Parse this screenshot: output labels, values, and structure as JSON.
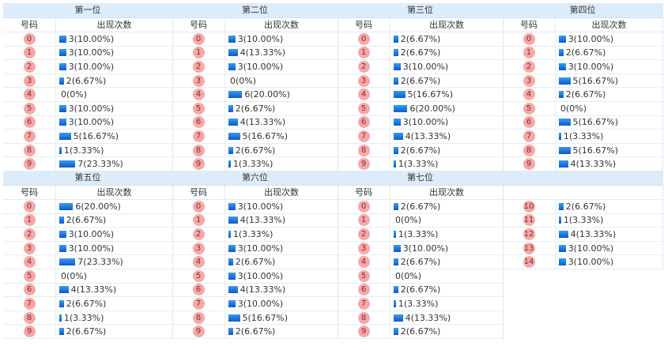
{
  "sub_headers": {
    "code": "号码",
    "count": "出现次数"
  },
  "colors": {
    "header_bg": "#dcecfa",
    "ball": "#f6a8a8",
    "bar": "#0a5cc8"
  },
  "positions": [
    {
      "title": "第一位",
      "rows": [
        {
          "code": "0",
          "count": 3,
          "label": "3(10.00%)"
        },
        {
          "code": "1",
          "count": 3,
          "label": "3(10.00%)"
        },
        {
          "code": "2",
          "count": 3,
          "label": "3(10.00%)"
        },
        {
          "code": "3",
          "count": 2,
          "label": "2(6.67%)"
        },
        {
          "code": "4",
          "count": 0,
          "label": "0(0%)"
        },
        {
          "code": "5",
          "count": 3,
          "label": "3(10.00%)"
        },
        {
          "code": "6",
          "count": 3,
          "label": "3(10.00%)"
        },
        {
          "code": "7",
          "count": 5,
          "label": "5(16.67%)"
        },
        {
          "code": "8",
          "count": 1,
          "label": "1(3.33%)"
        },
        {
          "code": "9",
          "count": 7,
          "label": "7(23.33%)"
        }
      ]
    },
    {
      "title": "第二位",
      "rows": [
        {
          "code": "0",
          "count": 3,
          "label": "3(10.00%)"
        },
        {
          "code": "1",
          "count": 4,
          "label": "4(13.33%)"
        },
        {
          "code": "2",
          "count": 3,
          "label": "3(10.00%)"
        },
        {
          "code": "3",
          "count": 0,
          "label": "0(0%)"
        },
        {
          "code": "4",
          "count": 6,
          "label": "6(20.00%)"
        },
        {
          "code": "5",
          "count": 2,
          "label": "2(6.67%)"
        },
        {
          "code": "6",
          "count": 4,
          "label": "4(13.33%)"
        },
        {
          "code": "7",
          "count": 5,
          "label": "5(16.67%)"
        },
        {
          "code": "8",
          "count": 2,
          "label": "2(6.67%)"
        },
        {
          "code": "9",
          "count": 1,
          "label": "1(3.33%)"
        }
      ]
    },
    {
      "title": "第三位",
      "rows": [
        {
          "code": "0",
          "count": 2,
          "label": "2(6.67%)"
        },
        {
          "code": "1",
          "count": 2,
          "label": "2(6.67%)"
        },
        {
          "code": "2",
          "count": 3,
          "label": "3(10.00%)"
        },
        {
          "code": "3",
          "count": 2,
          "label": "2(6.67%)"
        },
        {
          "code": "4",
          "count": 5,
          "label": "5(16.67%)"
        },
        {
          "code": "5",
          "count": 6,
          "label": "6(20.00%)"
        },
        {
          "code": "6",
          "count": 3,
          "label": "3(10.00%)"
        },
        {
          "code": "7",
          "count": 4,
          "label": "4(13.33%)"
        },
        {
          "code": "8",
          "count": 2,
          "label": "2(6.67%)"
        },
        {
          "code": "9",
          "count": 1,
          "label": "1(3.33%)"
        }
      ]
    },
    {
      "title": "第四位",
      "rows": [
        {
          "code": "0",
          "count": 3,
          "label": "3(10.00%)"
        },
        {
          "code": "1",
          "count": 2,
          "label": "2(6.67%)"
        },
        {
          "code": "2",
          "count": 3,
          "label": "3(10.00%)"
        },
        {
          "code": "3",
          "count": 5,
          "label": "5(16.67%)"
        },
        {
          "code": "4",
          "count": 2,
          "label": "2(6.67%)"
        },
        {
          "code": "5",
          "count": 0,
          "label": "0(0%)"
        },
        {
          "code": "6",
          "count": 5,
          "label": "5(16.67%)"
        },
        {
          "code": "7",
          "count": 1,
          "label": "1(3.33%)"
        },
        {
          "code": "8",
          "count": 5,
          "label": "5(16.67%)"
        },
        {
          "code": "9",
          "count": 4,
          "label": "4(13.33%)"
        }
      ]
    },
    {
      "title": "第五位",
      "rows": [
        {
          "code": "0",
          "count": 6,
          "label": "6(20.00%)"
        },
        {
          "code": "1",
          "count": 2,
          "label": "2(6.67%)"
        },
        {
          "code": "2",
          "count": 3,
          "label": "3(10.00%)"
        },
        {
          "code": "3",
          "count": 3,
          "label": "3(10.00%)"
        },
        {
          "code": "4",
          "count": 7,
          "label": "7(23.33%)"
        },
        {
          "code": "5",
          "count": 0,
          "label": "0(0%)"
        },
        {
          "code": "6",
          "count": 4,
          "label": "4(13.33%)"
        },
        {
          "code": "7",
          "count": 2,
          "label": "2(6.67%)"
        },
        {
          "code": "8",
          "count": 1,
          "label": "1(3.33%)"
        },
        {
          "code": "9",
          "count": 2,
          "label": "2(6.67%)"
        }
      ]
    },
    {
      "title": "第六位",
      "rows": [
        {
          "code": "0",
          "count": 3,
          "label": "3(10.00%)"
        },
        {
          "code": "1",
          "count": 4,
          "label": "4(13.33%)"
        },
        {
          "code": "2",
          "count": 1,
          "label": "1(3.33%)"
        },
        {
          "code": "3",
          "count": 3,
          "label": "3(10.00%)"
        },
        {
          "code": "4",
          "count": 2,
          "label": "2(6.67%)"
        },
        {
          "code": "5",
          "count": 3,
          "label": "3(10.00%)"
        },
        {
          "code": "6",
          "count": 4,
          "label": "4(13.33%)"
        },
        {
          "code": "7",
          "count": 3,
          "label": "3(10.00%)"
        },
        {
          "code": "8",
          "count": 5,
          "label": "5(16.67%)"
        },
        {
          "code": "9",
          "count": 2,
          "label": "2(6.67%)"
        }
      ]
    },
    {
      "title": "第七位",
      "rows": [
        {
          "code": "0",
          "count": 2,
          "label": "2(6.67%)"
        },
        {
          "code": "1",
          "count": 0,
          "label": "0(0%)"
        },
        {
          "code": "2",
          "count": 1,
          "label": "1(3.33%)"
        },
        {
          "code": "3",
          "count": 3,
          "label": "3(10.00%)"
        },
        {
          "code": "4",
          "count": 2,
          "label": "2(6.67%)"
        },
        {
          "code": "5",
          "count": 0,
          "label": "0(0%)"
        },
        {
          "code": "6",
          "count": 2,
          "label": "2(6.67%)"
        },
        {
          "code": "7",
          "count": 1,
          "label": "1(3.33%)"
        },
        {
          "code": "8",
          "count": 4,
          "label": "4(13.33%)"
        },
        {
          "code": "9",
          "count": 2,
          "label": "2(6.67%)"
        }
      ]
    },
    {
      "title": "",
      "hide_sub": true,
      "rows": [
        {
          "code": "10",
          "count": 2,
          "label": "2(6.67%)"
        },
        {
          "code": "11",
          "count": 1,
          "label": "1(3.33%)"
        },
        {
          "code": "12",
          "count": 4,
          "label": "4(13.33%)"
        },
        {
          "code": "13",
          "count": 3,
          "label": "3(10.00%)"
        },
        {
          "code": "14",
          "count": 3,
          "label": "3(10.00%)"
        }
      ]
    }
  ]
}
